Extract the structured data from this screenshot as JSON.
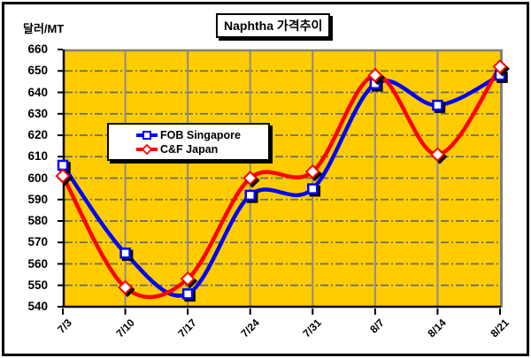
{
  "chart_data": {
    "type": "line",
    "title": "Naphtha 가격추이",
    "y_unit_label": "달러/MT",
    "categories": [
      "7/3",
      "7/10",
      "7/17",
      "7/24",
      "7/31",
      "8/7",
      "8/14",
      "8/21"
    ],
    "series": [
      {
        "name": "FOB Singapore",
        "color": "#0000FF",
        "marker": "square",
        "values": [
          606,
          565,
          546,
          592,
          595,
          644,
          634,
          648
        ]
      },
      {
        "name": "C&F Japan",
        "color": "#FF0000",
        "marker": "diamond",
        "values": [
          601,
          549,
          553,
          600,
          603,
          648,
          611,
          652
        ]
      }
    ],
    "ylim": [
      540,
      660
    ],
    "y_step": 10,
    "smooth": true,
    "grid": "both",
    "legend_position": "inside-upper-left",
    "colors": {
      "plot_bg": "#FFCC00",
      "grid_h": "#6b6b6b",
      "grid_v": "#8c8c8c",
      "axis": "#000000",
      "plot_border": "#808080",
      "marker_fill": "#FFFFFF",
      "marker_shadow": "#000000"
    }
  }
}
